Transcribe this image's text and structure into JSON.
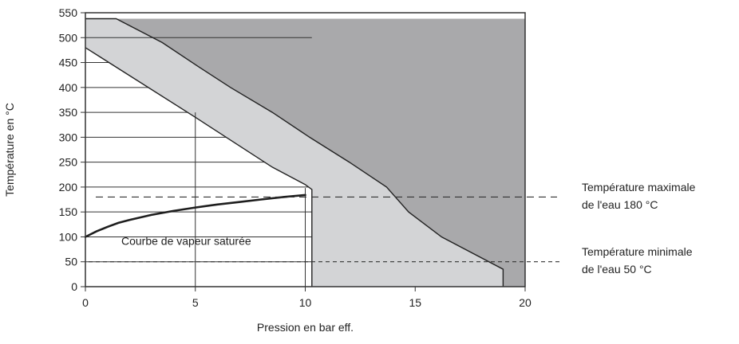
{
  "chart_data": {
    "type": "area",
    "xlabel": "Pression en bar eff.",
    "ylabel": "Température en °C",
    "xlim": [
      0,
      20
    ],
    "ylim": [
      0,
      550
    ],
    "x_ticks": [
      "0",
      "5",
      "10",
      "15",
      "20"
    ],
    "y_ticks": [
      "0",
      "50",
      "100",
      "150",
      "200",
      "250",
      "300",
      "350",
      "400",
      "450",
      "500",
      "550"
    ],
    "regions": [
      {
        "fill": "#a9a9ab",
        "polygon": [
          [
            1.4,
            538
          ],
          [
            20,
            538
          ],
          [
            20,
            0
          ],
          [
            19.0,
            0
          ],
          [
            19.0,
            35
          ],
          [
            16.2,
            100
          ],
          [
            14.7,
            150
          ],
          [
            13.7,
            200
          ],
          [
            12.0,
            250
          ],
          [
            10.2,
            300
          ],
          [
            8.5,
            350
          ],
          [
            6.6,
            400
          ],
          [
            5.2,
            440
          ],
          [
            3.5,
            490
          ],
          [
            1.4,
            538
          ]
        ]
      },
      {
        "fill": "#d3d4d6",
        "polygon": [
          [
            0,
            538
          ],
          [
            1.4,
            538
          ],
          [
            3.5,
            490
          ],
          [
            5.2,
            440
          ],
          [
            6.6,
            400
          ],
          [
            8.5,
            350
          ],
          [
            10.2,
            300
          ],
          [
            12.0,
            250
          ],
          [
            13.7,
            200
          ],
          [
            14.7,
            150
          ],
          [
            16.2,
            100
          ],
          [
            19.0,
            35
          ],
          [
            19.0,
            0
          ],
          [
            10.3,
            0
          ],
          [
            10.3,
            195
          ],
          [
            10.0,
            205
          ],
          [
            8.5,
            240
          ],
          [
            5.0,
            340
          ],
          [
            0,
            480
          ]
        ]
      },
      {
        "fill": "#ffffff",
        "polygon": [
          [
            0,
            480
          ],
          [
            5.0,
            340
          ],
          [
            8.5,
            240
          ],
          [
            10.0,
            205
          ],
          [
            10.3,
            195
          ],
          [
            10.3,
            0
          ],
          [
            0,
            0
          ]
        ]
      }
    ],
    "boundary_lines": [
      {
        "points": [
          [
            0,
            538
          ],
          [
            1.4,
            538
          ],
          [
            3.5,
            490
          ],
          [
            5.2,
            440
          ],
          [
            6.6,
            400
          ],
          [
            8.5,
            350
          ],
          [
            10.2,
            300
          ],
          [
            12.0,
            250
          ],
          [
            13.7,
            200
          ],
          [
            14.7,
            150
          ],
          [
            16.2,
            100
          ],
          [
            19.0,
            35
          ],
          [
            19.0,
            0
          ]
        ]
      },
      {
        "points": [
          [
            0,
            480
          ],
          [
            5.0,
            340
          ],
          [
            8.5,
            240
          ],
          [
            10.0,
            205
          ],
          [
            10.3,
            195
          ],
          [
            10.3,
            0
          ]
        ]
      }
    ],
    "saturated_curve": {
      "label": "Courbe de vapeur saturée",
      "points": [
        [
          0,
          100
        ],
        [
          0.5,
          111
        ],
        [
          1,
          120
        ],
        [
          1.5,
          128
        ],
        [
          2,
          134
        ],
        [
          3,
          144
        ],
        [
          4,
          152
        ],
        [
          5,
          159
        ],
        [
          6,
          165
        ],
        [
          7,
          170
        ],
        [
          8,
          175
        ],
        [
          9,
          180
        ],
        [
          10,
          184
        ]
      ]
    },
    "vertical_refs": [
      5,
      10
    ],
    "reference_lines": [
      {
        "y": 180,
        "style": "dashed",
        "label_line1": "Température maximale",
        "label_line2": "de l'eau 180 °C"
      },
      {
        "y": 50,
        "style": "dashed",
        "label_line1": "Température minimale",
        "label_line2": "de l'eau 50 °C"
      }
    ]
  }
}
